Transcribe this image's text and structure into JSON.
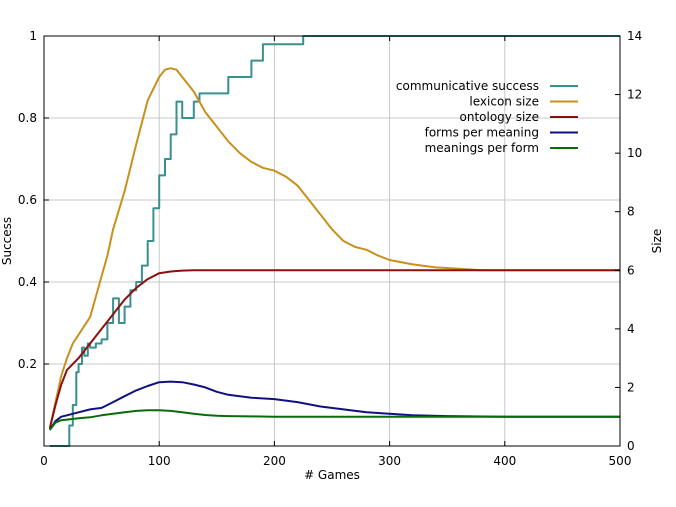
{
  "chart_data": {
    "type": "line",
    "xlabel": "# Games",
    "ylabel_left": "Success",
    "ylabel_right": "Size",
    "xlim": [
      0,
      500
    ],
    "ylim_left": [
      0,
      1
    ],
    "ylim_right": [
      0,
      14
    ],
    "x_ticks": [
      "0",
      "100",
      "200",
      "300",
      "400",
      "500"
    ],
    "y_left_ticks": [
      {
        "value": 0.2,
        "label": "0.2"
      },
      {
        "value": 0.4,
        "label": "0.4"
      },
      {
        "value": 0.6,
        "label": "0.6"
      },
      {
        "value": 0.8,
        "label": "0.8"
      },
      {
        "value": 1,
        "label": "1"
      }
    ],
    "y_right_ticks": [
      {
        "value": 0,
        "label": "0"
      },
      {
        "value": 2,
        "label": "2"
      },
      {
        "value": 4,
        "label": "4"
      },
      {
        "value": 6,
        "label": "6"
      },
      {
        "value": 8,
        "label": "8"
      },
      {
        "value": 10,
        "label": "10"
      },
      {
        "value": 12,
        "label": "12"
      },
      {
        "value": 14,
        "label": "14"
      }
    ],
    "grid": true,
    "legend_position": "top-right",
    "series": [
      {
        "name": "communicative success",
        "axis": "left",
        "color": "#3a8f8f",
        "step": true,
        "x": [
          5,
          20,
          22,
          25,
          28,
          30,
          33,
          35,
          38,
          40,
          45,
          50,
          55,
          60,
          65,
          70,
          75,
          80,
          85,
          90,
          95,
          100,
          105,
          110,
          115,
          120,
          125,
          130,
          135,
          140,
          145,
          150,
          160,
          170,
          180,
          190,
          200,
          210,
          220,
          225,
          300,
          400,
          500
        ],
        "y": [
          0,
          0,
          0.05,
          0.1,
          0.18,
          0.2,
          0.24,
          0.22,
          0.25,
          0.24,
          0.25,
          0.26,
          0.3,
          0.36,
          0.3,
          0.34,
          0.38,
          0.4,
          0.44,
          0.5,
          0.58,
          0.66,
          0.7,
          0.76,
          0.84,
          0.8,
          0.8,
          0.84,
          0.86,
          0.86,
          0.86,
          0.86,
          0.9,
          0.9,
          0.94,
          0.98,
          0.98,
          0.98,
          0.98,
          1,
          1,
          1,
          1
        ]
      },
      {
        "name": "lexicon size",
        "axis": "right",
        "color": "#c8901c",
        "step": false,
        "x": [
          5,
          10,
          15,
          20,
          25,
          30,
          40,
          50,
          55,
          60,
          70,
          80,
          90,
          100,
          105,
          110,
          115,
          120,
          130,
          140,
          150,
          160,
          170,
          180,
          190,
          200,
          210,
          220,
          230,
          240,
          250,
          260,
          270,
          280,
          290,
          300,
          320,
          340,
          360,
          380,
          390,
          400,
          450,
          500
        ],
        "y": [
          0.6,
          1.5,
          2.4,
          3.0,
          3.5,
          3.8,
          4.4,
          5.8,
          6.5,
          7.4,
          8.7,
          10.3,
          11.8,
          12.6,
          12.85,
          12.9,
          12.85,
          12.6,
          12.1,
          11.4,
          10.9,
          10.4,
          10.0,
          9.7,
          9.5,
          9.4,
          9.2,
          8.9,
          8.4,
          7.9,
          7.4,
          7.0,
          6.8,
          6.7,
          6.5,
          6.35,
          6.2,
          6.1,
          6.05,
          6.0,
          6.0,
          6.0,
          6.0,
          6.0
        ]
      },
      {
        "name": "ontology size",
        "axis": "right",
        "color": "#8b1010",
        "step": false,
        "x": [
          5,
          10,
          15,
          20,
          30,
          40,
          50,
          60,
          70,
          80,
          90,
          100,
          110,
          120,
          130,
          140,
          150,
          200,
          300,
          400,
          500
        ],
        "y": [
          0.6,
          1.4,
          2.1,
          2.6,
          3.0,
          3.5,
          4.0,
          4.5,
          5.0,
          5.4,
          5.7,
          5.9,
          5.96,
          5.99,
          6.0,
          6.0,
          6.0,
          6.0,
          6.0,
          6.0,
          6.0
        ]
      },
      {
        "name": "forms per meaning",
        "axis": "right",
        "color": "#101080",
        "step": false,
        "x": [
          5,
          10,
          15,
          20,
          30,
          40,
          50,
          60,
          70,
          80,
          90,
          100,
          110,
          120,
          130,
          140,
          150,
          160,
          180,
          200,
          220,
          240,
          260,
          280,
          300,
          320,
          350,
          400,
          450,
          500
        ],
        "y": [
          0.55,
          0.85,
          1.0,
          1.05,
          1.15,
          1.25,
          1.3,
          1.5,
          1.7,
          1.9,
          2.05,
          2.18,
          2.2,
          2.18,
          2.1,
          2.0,
          1.85,
          1.75,
          1.65,
          1.6,
          1.5,
          1.35,
          1.25,
          1.15,
          1.1,
          1.05,
          1.02,
          1.0,
          1.0,
          1.0
        ]
      },
      {
        "name": "meanings per form",
        "axis": "right",
        "color": "#0a6b0a",
        "step": false,
        "x": [
          5,
          10,
          15,
          20,
          30,
          40,
          50,
          60,
          70,
          80,
          90,
          100,
          110,
          120,
          130,
          140,
          150,
          160,
          180,
          200,
          250,
          300,
          400,
          500
        ],
        "y": [
          0.55,
          0.8,
          0.88,
          0.9,
          0.95,
          0.98,
          1.05,
          1.1,
          1.15,
          1.2,
          1.22,
          1.22,
          1.2,
          1.15,
          1.1,
          1.06,
          1.03,
          1.02,
          1.01,
          1.0,
          1.0,
          1.0,
          1.0,
          1.0
        ]
      }
    ]
  }
}
